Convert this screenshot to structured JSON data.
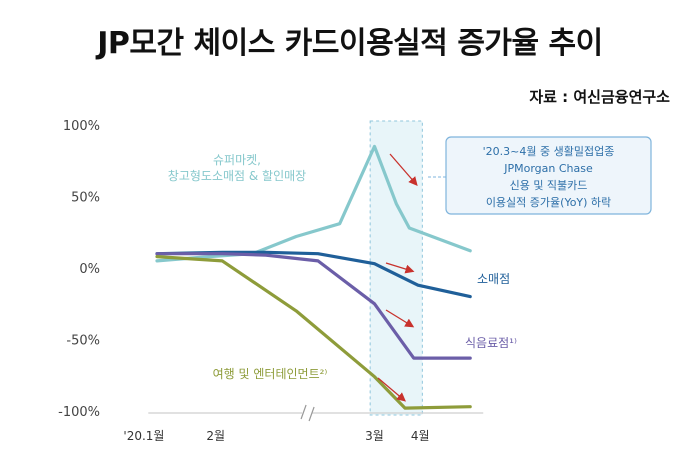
{
  "header": {
    "title": "JP모간 체이스 카드이용실적 증가율 추이",
    "source": "자료 : 여신금융연구소"
  },
  "callout": {
    "lines": [
      "'20.3~4월 중 생활밀접업종",
      "JPMorgan Chase",
      "신용 및 직불카드",
      "이용실적 증가율(YoY) 하락"
    ]
  },
  "colors": {
    "supermarket": "#86c8cc",
    "retail": "#1f5f99",
    "restaurant": "#6b5ea8",
    "travel": "#8e9c3a",
    "highlight": "#d9eef5",
    "arrow": "#c8322d",
    "callout_border": "#7fb4dc",
    "callout_fill": "#eef5fb"
  },
  "chart_data": {
    "type": "line",
    "x": [
      "'20.1월",
      "",
      "2월",
      "",
      "",
      "3월",
      "",
      "4월",
      ""
    ],
    "x_labels": [
      "'20.1월",
      "2월",
      "3월",
      "4월"
    ],
    "y_ticks": [
      "100%",
      "50%",
      "0%",
      "-50%",
      "-100%"
    ],
    "ylim": [
      -100,
      100
    ],
    "grid": false,
    "axis_break_between": [
      "2월",
      "3월"
    ],
    "highlight_range": [
      "3월",
      "4월"
    ],
    "series": [
      {
        "name": "슈퍼마켓, 창고형도소매점 & 할인매장",
        "label_lines": [
          "슈퍼마켓,",
          "창고형도소매점 & 할인매장"
        ],
        "color_key": "supermarket",
        "values": [
          [
            0,
            5
          ],
          [
            1.2,
            8
          ],
          [
            2.2,
            10
          ],
          [
            3.2,
            22
          ],
          [
            4.2,
            31
          ],
          [
            5.0,
            85
          ],
          [
            5.5,
            45
          ],
          [
            5.8,
            28
          ],
          [
            7.2,
            12
          ]
        ]
      },
      {
        "name": "소매점",
        "label_lines": [
          "소매점"
        ],
        "color_key": "retail",
        "values": [
          [
            0,
            10
          ],
          [
            1.5,
            11
          ],
          [
            2.5,
            11
          ],
          [
            3.7,
            10
          ],
          [
            5.0,
            3
          ],
          [
            6.0,
            -12
          ],
          [
            7.2,
            -20
          ]
        ]
      },
      {
        "name": "식음료점",
        "label_lines": [
          "식음료점¹⁾"
        ],
        "color_key": "restaurant",
        "values": [
          [
            0,
            10
          ],
          [
            1.5,
            10
          ],
          [
            2.5,
            9
          ],
          [
            3.7,
            5
          ],
          [
            5.0,
            -25
          ],
          [
            5.9,
            -63
          ],
          [
            7.2,
            -63
          ]
        ]
      },
      {
        "name": "여행 및 엔터테인먼트",
        "label_lines": [
          "여행 및 엔터테인먼트²⁾"
        ],
        "color_key": "travel",
        "values": [
          [
            0,
            8
          ],
          [
            1.5,
            5
          ],
          [
            3.2,
            -30
          ],
          [
            5.0,
            -76
          ],
          [
            5.7,
            -98
          ],
          [
            7.2,
            -97
          ]
        ]
      }
    ]
  }
}
